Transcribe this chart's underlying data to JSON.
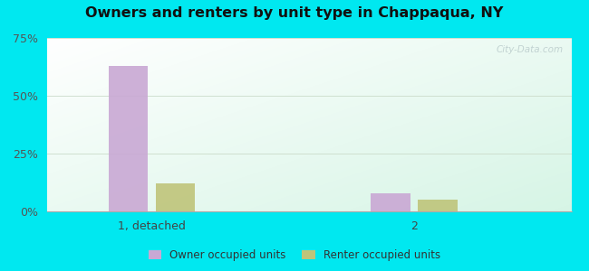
{
  "title": "Owners and renters by unit type in Chappaqua, NY",
  "categories": [
    "1, detached",
    "2"
  ],
  "owner_values": [
    63,
    8
  ],
  "renter_values": [
    12,
    5
  ],
  "owner_color": "#c9a8d4",
  "renter_color": "#bfc47a",
  "ylim": [
    0,
    75
  ],
  "yticks": [
    0,
    25,
    50,
    75
  ],
  "ytick_labels": [
    "0%",
    "25%",
    "50%",
    "75%"
  ],
  "legend_owner": "Owner occupied units",
  "legend_renter": "Renter occupied units",
  "background_outer": "#00e8f0",
  "bar_width": 0.3,
  "group_positions": [
    1.0,
    3.0
  ],
  "xlim": [
    0.2,
    4.2
  ],
  "watermark": "City-Data.com"
}
